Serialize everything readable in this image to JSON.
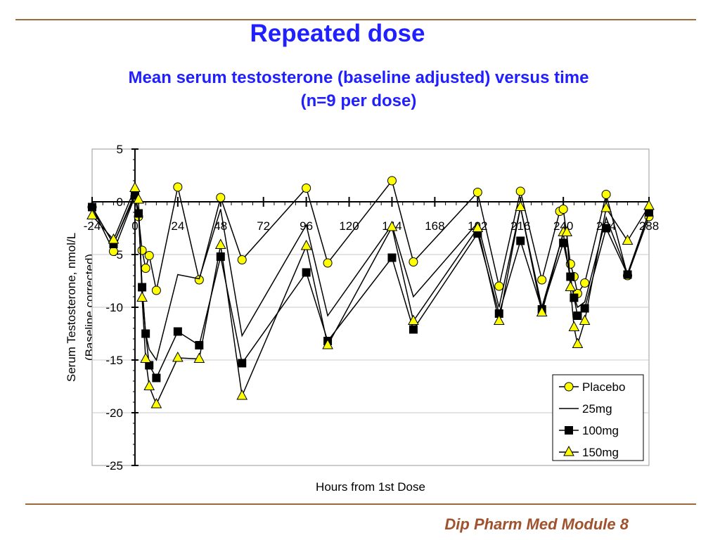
{
  "slide": {
    "title": "Repeated dose",
    "subtitle_line1": "Mean serum testosterone (baseline adjusted) versus time",
    "subtitle_line2": "(n=9 per dose)",
    "footer": "Dip Pharm Med Module 8",
    "accent_color": "#1f1fff",
    "footer_color": "#a0522d"
  },
  "chart_data": {
    "type": "line",
    "xlabel": "Hours from 1st Dose",
    "ylabel_line1": "Serum Testosterone, nmol/L",
    "ylabel_line2": "(Baseline corrected)",
    "xlim": [
      -24,
      288
    ],
    "ylim": [
      -25,
      5
    ],
    "xticks": [
      -24,
      0,
      24,
      48,
      72,
      96,
      120,
      144,
      168,
      192,
      216,
      240,
      264,
      288
    ],
    "yticks": [
      5,
      0,
      -5,
      -10,
      -15,
      -20,
      -25
    ],
    "grid": true,
    "legend_position": "bottom-right",
    "series": [
      {
        "name": "Placebo",
        "marker": "circle",
        "color": "#ffff00",
        "x": [
          -24,
          -12,
          0,
          2,
          4,
          6,
          8,
          12,
          24,
          36,
          48,
          60,
          96,
          108,
          144,
          156,
          192,
          204,
          216,
          228,
          238,
          240,
          244,
          246,
          248,
          252,
          264,
          276,
          288
        ],
        "y": [
          -0.5,
          -4.7,
          0.5,
          -1.4,
          -4.6,
          -6.3,
          -5.1,
          -8.4,
          1.4,
          -7.4,
          0.4,
          -5.5,
          1.3,
          -5.8,
          2.0,
          -5.7,
          0.9,
          -8.0,
          1.0,
          -7.4,
          -0.9,
          -0.7,
          -5.9,
          -7.1,
          -8.7,
          -7.7,
          0.7,
          -7.0,
          -1.4
        ]
      },
      {
        "name": "25mg",
        "marker": "none",
        "color": "#000000",
        "x": [
          -24,
          -12,
          0,
          2,
          4,
          6,
          8,
          12,
          24,
          36,
          48,
          60,
          96,
          108,
          144,
          156,
          192,
          204,
          216,
          228,
          240,
          244,
          246,
          248,
          252,
          264,
          276,
          288
        ],
        "y": [
          -0.5,
          -4.0,
          0.8,
          -1.0,
          -8.0,
          -12.5,
          -14.0,
          -15.0,
          -6.9,
          -7.3,
          -0.7,
          -12.7,
          -2.2,
          -10.8,
          -2.2,
          -9.0,
          -2.0,
          -10.0,
          -0.5,
          -10.0,
          -3.0,
          -7.5,
          -9.0,
          -10.0,
          -9.5,
          -1.5,
          -6.8,
          -1.0
        ]
      },
      {
        "name": "100mg",
        "marker": "square",
        "color": "#000000",
        "x": [
          -24,
          -12,
          0,
          2,
          4,
          6,
          8,
          12,
          24,
          36,
          48,
          60,
          96,
          108,
          144,
          156,
          192,
          204,
          216,
          228,
          240,
          244,
          246,
          248,
          252,
          264,
          276,
          288
        ],
        "y": [
          -0.5,
          -4.0,
          0.6,
          -1.1,
          -8.1,
          -12.5,
          -15.5,
          -16.7,
          -12.3,
          -13.6,
          -5.2,
          -15.3,
          -6.7,
          -13.2,
          -5.3,
          -12.1,
          -3.0,
          -10.6,
          -3.7,
          -10.2,
          -3.9,
          -7.1,
          -9.1,
          -10.8,
          -10.1,
          -2.5,
          -6.9,
          -1.0
        ]
      },
      {
        "name": "150mg",
        "marker": "triangle",
        "color": "#ffff00",
        "x": [
          -24,
          -12,
          0,
          2,
          4,
          6,
          8,
          12,
          24,
          36,
          48,
          60,
          96,
          108,
          144,
          156,
          192,
          204,
          216,
          228,
          240,
          242,
          244,
          246,
          248,
          252,
          264,
          276,
          288
        ],
        "y": [
          -1.3,
          -3.6,
          1.3,
          0.2,
          -9.1,
          -14.9,
          -17.5,
          -19.2,
          -14.8,
          -14.9,
          -4.1,
          -18.4,
          -4.2,
          -13.6,
          -2.4,
          -11.3,
          -2.5,
          -11.3,
          -0.5,
          -10.5,
          -2.9,
          -2.9,
          -8.1,
          -11.9,
          -13.5,
          -11.3,
          -0.6,
          -3.7,
          -0.4
        ]
      }
    ]
  }
}
